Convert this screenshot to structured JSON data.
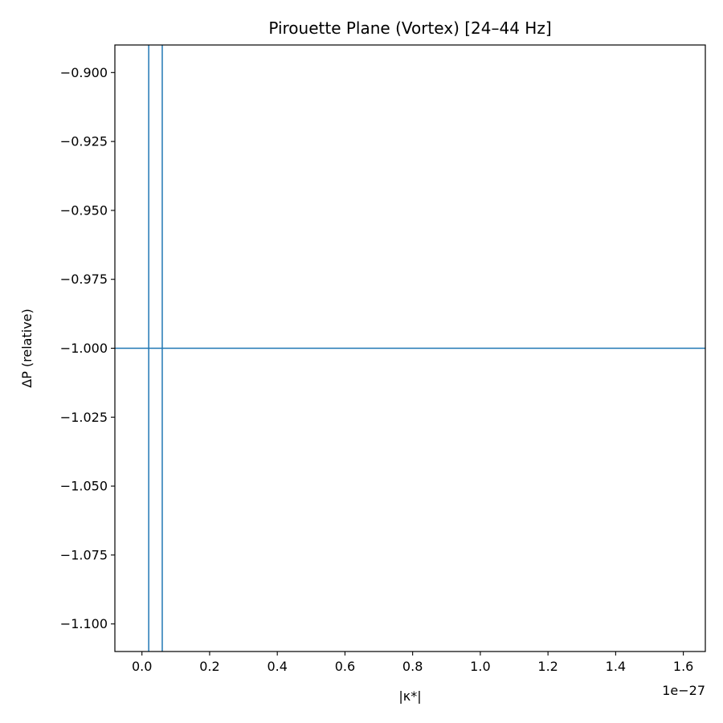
{
  "chart_data": {
    "type": "line",
    "title": "Pirouette Plane (Vortex)  [24–44 Hz]",
    "xlabel": "|κ*|",
    "ylabel": "ΔP (relative)",
    "x_offset_text": "1e−27",
    "xlim": [
      -0.08,
      1.665
    ],
    "ylim": [
      -1.11,
      -0.89
    ],
    "xticks": [
      0.0,
      0.2,
      0.4,
      0.6,
      0.8,
      1.0,
      1.2,
      1.4,
      1.6
    ],
    "xtick_labels": [
      "0.0",
      "0.2",
      "0.4",
      "0.6",
      "0.8",
      "1.0",
      "1.2",
      "1.4",
      "1.6"
    ],
    "yticks": [
      -0.9,
      -0.925,
      -0.95,
      -0.975,
      -1.0,
      -1.025,
      -1.05,
      -1.075,
      -1.1
    ],
    "ytick_labels": [
      "−0.900",
      "−0.925",
      "−0.950",
      "−0.975",
      "−1.000",
      "−1.025",
      "−1.050",
      "−1.075",
      "−1.100"
    ],
    "grid": false,
    "line_color": "#1f77b4",
    "vertical_lines": [
      0.02,
      0.06
    ],
    "horizontal_lines": [
      -1.0
    ]
  }
}
